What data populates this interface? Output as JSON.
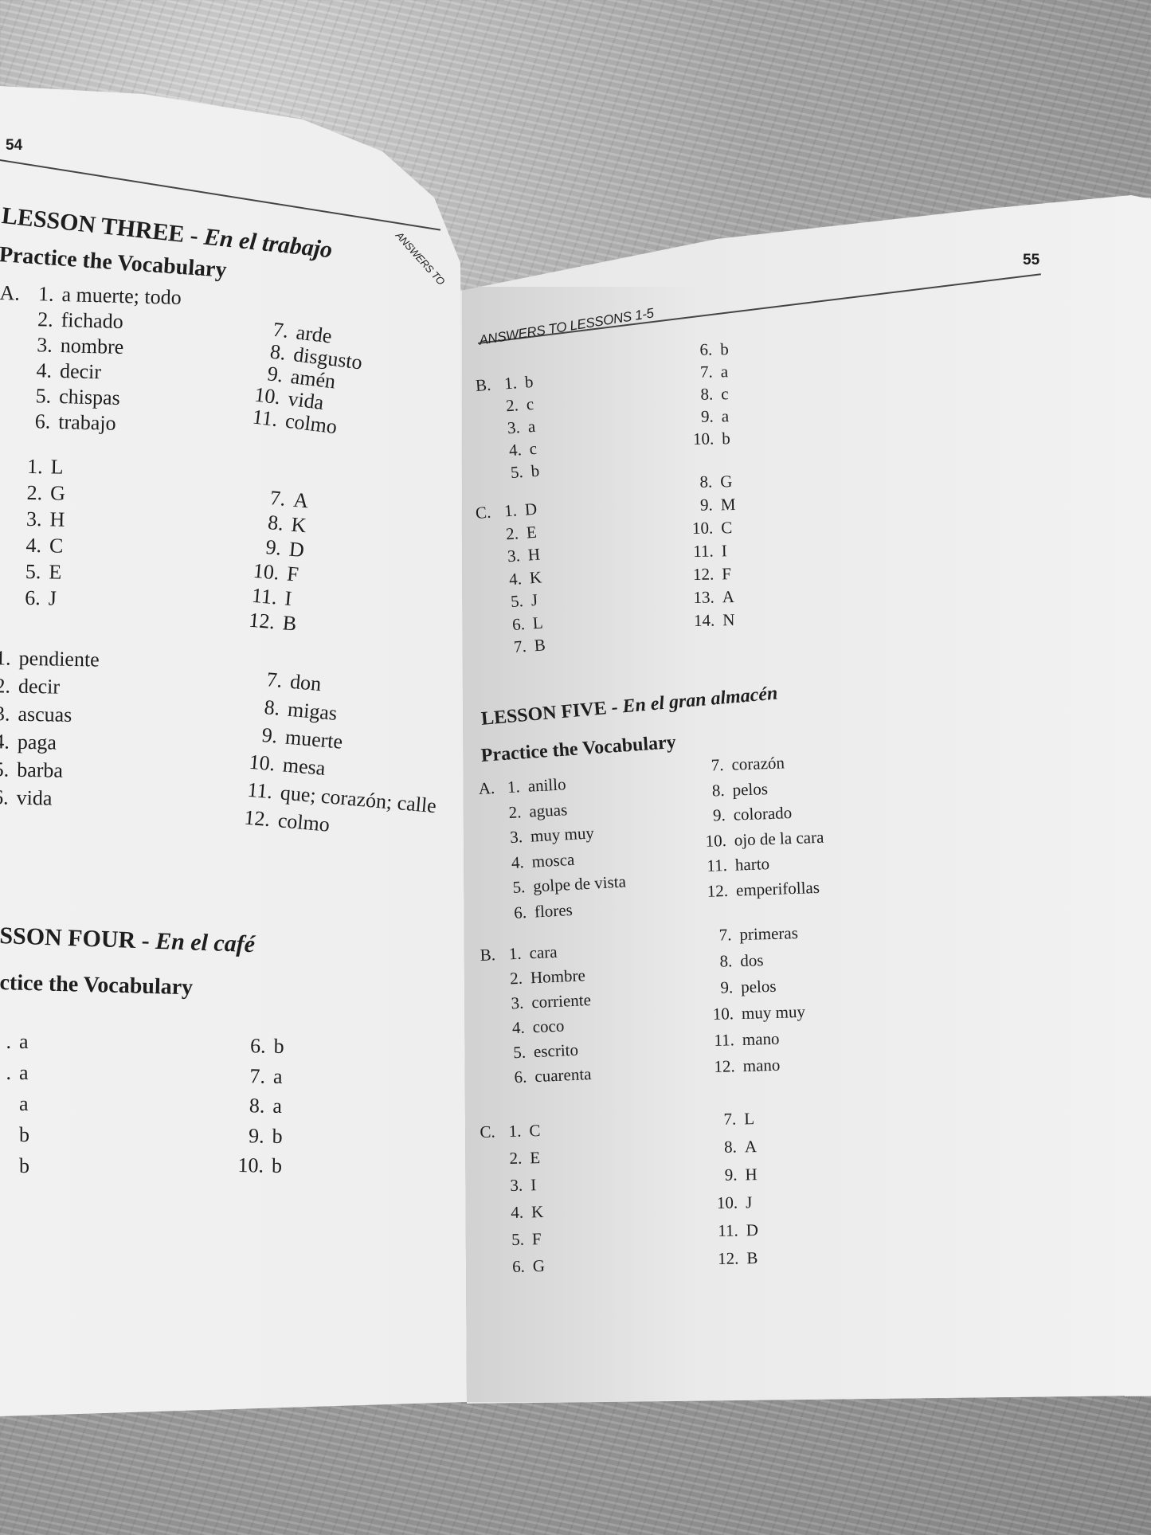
{
  "left_page": {
    "page_number": "54",
    "lesson_three": {
      "title": "LESSON THREE",
      "dash": "-",
      "subtitle": "En el trabajo",
      "section_title": "Practice the Vocabulary",
      "running_head_fragment": "ANSWERS TO",
      "a": {
        "label": "A.",
        "col1": [
          {
            "n": "1.",
            "a": "a muerte; todo"
          },
          {
            "n": "2.",
            "a": "fichado"
          },
          {
            "n": "3.",
            "a": "nombre"
          },
          {
            "n": "4.",
            "a": "decir"
          },
          {
            "n": "5.",
            "a": "chispas"
          },
          {
            "n": "6.",
            "a": "trabajo"
          }
        ],
        "col2": [
          {
            "n": "7.",
            "a": "arde"
          },
          {
            "n": "8.",
            "a": "disgusto"
          },
          {
            "n": "9.",
            "a": "amén"
          },
          {
            "n": "10.",
            "a": "vida"
          },
          {
            "n": "11.",
            "a": "colmo"
          }
        ]
      },
      "b": {
        "label": ".",
        "col1": [
          {
            "n": "1.",
            "a": "L"
          },
          {
            "n": "2.",
            "a": "G"
          },
          {
            "n": "3.",
            "a": "H"
          },
          {
            "n": "4.",
            "a": "C"
          },
          {
            "n": "5.",
            "a": "E"
          },
          {
            "n": "6.",
            "a": "J"
          }
        ],
        "col2": [
          {
            "n": "7.",
            "a": "A"
          },
          {
            "n": "8.",
            "a": "K"
          },
          {
            "n": "9.",
            "a": "D"
          },
          {
            "n": "10.",
            "a": "F"
          },
          {
            "n": "11.",
            "a": "I"
          },
          {
            "n": "12.",
            "a": "B"
          }
        ]
      },
      "c": {
        "label": "",
        "col1": [
          {
            "n": "1.",
            "a": "pendiente"
          },
          {
            "n": "2.",
            "a": "decir"
          },
          {
            "n": "3.",
            "a": "ascuas"
          },
          {
            "n": "4.",
            "a": "paga"
          },
          {
            "n": "5.",
            "a": "barba"
          },
          {
            "n": "6.",
            "a": "vida"
          }
        ],
        "col2": [
          {
            "n": "7.",
            "a": "don"
          },
          {
            "n": "8.",
            "a": "migas"
          },
          {
            "n": "9.",
            "a": "muerte"
          },
          {
            "n": "10.",
            "a": "mesa"
          },
          {
            "n": "11.",
            "a": "que; corazón; calle"
          },
          {
            "n": "12.",
            "a": "colmo"
          }
        ]
      }
    },
    "lesson_four": {
      "title": "SSON FOUR",
      "dash": "-",
      "subtitle": "En el café",
      "section_title": "ctice the Vocabulary",
      "a": {
        "col1": [
          {
            "n": ".",
            "a": "a"
          },
          {
            "n": ".",
            "a": "a"
          },
          {
            "n": "",
            "a": "a"
          },
          {
            "n": "",
            "a": "b"
          },
          {
            "n": "",
            "a": "b"
          }
        ],
        "col2": [
          {
            "n": "6.",
            "a": "b"
          },
          {
            "n": "7.",
            "a": "a"
          },
          {
            "n": "8.",
            "a": "a"
          },
          {
            "n": "9.",
            "a": "b"
          },
          {
            "n": "10.",
            "a": "b"
          }
        ]
      }
    }
  },
  "right_page": {
    "page_number": "55",
    "running_head": "ANSWERS TO LESSONS 1-5",
    "lesson_four_cont": {
      "b": {
        "label": "B.",
        "col1": [
          {
            "n": "1.",
            "a": "b"
          },
          {
            "n": "2.",
            "a": "c"
          },
          {
            "n": "3.",
            "a": "a"
          },
          {
            "n": "4.",
            "a": "c"
          },
          {
            "n": "5.",
            "a": "b"
          }
        ],
        "col2": [
          {
            "n": "6.",
            "a": "b"
          },
          {
            "n": "7.",
            "a": "a"
          },
          {
            "n": "8.",
            "a": "c"
          },
          {
            "n": "9.",
            "a": "a"
          },
          {
            "n": "10.",
            "a": "b"
          }
        ]
      },
      "c": {
        "label": "C.",
        "col1": [
          {
            "n": "1.",
            "a": "D"
          },
          {
            "n": "2.",
            "a": "E"
          },
          {
            "n": "3.",
            "a": "H"
          },
          {
            "n": "4.",
            "a": "K"
          },
          {
            "n": "5.",
            "a": "J"
          },
          {
            "n": "6.",
            "a": "L"
          },
          {
            "n": "7.",
            "a": "B"
          }
        ],
        "col2": [
          {
            "n": "8.",
            "a": "G"
          },
          {
            "n": "9.",
            "a": "M"
          },
          {
            "n": "10.",
            "a": "C"
          },
          {
            "n": "11.",
            "a": "I"
          },
          {
            "n": "12.",
            "a": "F"
          },
          {
            "n": "13.",
            "a": "A"
          },
          {
            "n": "14.",
            "a": "N"
          }
        ]
      }
    },
    "lesson_five": {
      "title": "LESSON FIVE",
      "dash": "-",
      "subtitle": "En el gran almacén",
      "section_title": "Practice the Vocabulary",
      "a": {
        "label": "A.",
        "col1": [
          {
            "n": "1.",
            "a": "anillo"
          },
          {
            "n": "2.",
            "a": "aguas"
          },
          {
            "n": "3.",
            "a": "muy muy"
          },
          {
            "n": "4.",
            "a": "mosca"
          },
          {
            "n": "5.",
            "a": "golpe de vista"
          },
          {
            "n": "6.",
            "a": "flores"
          }
        ],
        "col2": [
          {
            "n": "7.",
            "a": "corazón"
          },
          {
            "n": "8.",
            "a": "pelos"
          },
          {
            "n": "9.",
            "a": "colorado"
          },
          {
            "n": "10.",
            "a": "ojo de la cara"
          },
          {
            "n": "11.",
            "a": "harto"
          },
          {
            "n": "12.",
            "a": "emperifollas"
          }
        ]
      },
      "b": {
        "label": "B.",
        "col1": [
          {
            "n": "1.",
            "a": "cara"
          },
          {
            "n": "2.",
            "a": "Hombre"
          },
          {
            "n": "3.",
            "a": "corriente"
          },
          {
            "n": "4.",
            "a": "coco"
          },
          {
            "n": "5.",
            "a": "escrito"
          },
          {
            "n": "6.",
            "a": "cuarenta"
          }
        ],
        "col2": [
          {
            "n": "7.",
            "a": "primeras"
          },
          {
            "n": "8.",
            "a": "dos"
          },
          {
            "n": "9.",
            "a": "pelos"
          },
          {
            "n": "10.",
            "a": "muy muy"
          },
          {
            "n": "11.",
            "a": "mano"
          },
          {
            "n": "12.",
            "a": "mano"
          }
        ]
      },
      "c": {
        "label": "C.",
        "col1": [
          {
            "n": "1.",
            "a": "C"
          },
          {
            "n": "2.",
            "a": "E"
          },
          {
            "n": "3.",
            "a": "I"
          },
          {
            "n": "4.",
            "a": "K"
          },
          {
            "n": "5.",
            "a": "F"
          },
          {
            "n": "6.",
            "a": "G"
          }
        ],
        "col2": [
          {
            "n": "7.",
            "a": "L"
          },
          {
            "n": "8.",
            "a": "A"
          },
          {
            "n": "9.",
            "a": "H"
          },
          {
            "n": "10.",
            "a": "J"
          },
          {
            "n": "11.",
            "a": "D"
          },
          {
            "n": "12.",
            "a": "B"
          }
        ]
      }
    }
  }
}
